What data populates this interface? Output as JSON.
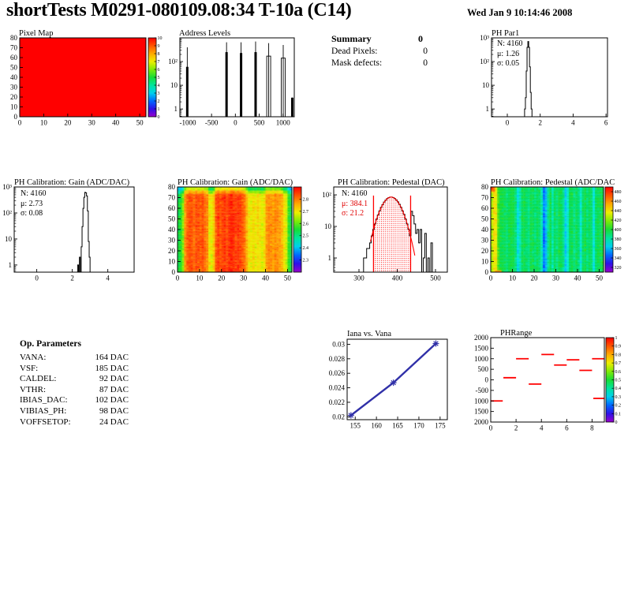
{
  "header": {
    "title": "shortTests M0291-080109.08:34 T-10a (C14)",
    "date": "Wed Jan  9 10:14:46 2008"
  },
  "summary": {
    "title": "Summary",
    "value": "0",
    "rows": [
      {
        "label": "Dead Pixels:",
        "value": "0"
      },
      {
        "label": "Mask defects:",
        "value": "0"
      }
    ]
  },
  "op_parameters": {
    "title": "Op. Parameters",
    "rows": [
      {
        "label": "VANA:",
        "value": "164 DAC"
      },
      {
        "label": "VSF:",
        "value": "185 DAC"
      },
      {
        "label": "CALDEL:",
        "value": "92 DAC"
      },
      {
        "label": "VTHR:",
        "value": "87 DAC"
      },
      {
        "label": "IBIAS_DAC:",
        "value": "102 DAC"
      },
      {
        "label": "VIBIAS_PH:",
        "value": "98 DAC"
      },
      {
        "label": "VOFFSETOP:",
        "value": "24 DAC"
      }
    ]
  },
  "colors": {
    "accent_red": "#ff0000",
    "line_blue": "#3030a8",
    "black": "#000000"
  },
  "chart_data": [
    {
      "el": "p-pixel-map",
      "type": "heatmap",
      "title": "Pixel Map",
      "panel": [
        0,
        32,
        215,
        130
      ],
      "frame": [
        25,
        16,
        160,
        100
      ],
      "title_pos": [
        24,
        5
      ],
      "xlim": [
        0,
        52.6
      ],
      "ylim": [
        0,
        80
      ],
      "xticks": [
        [
          0,
          "0"
        ],
        [
          10,
          "10"
        ],
        [
          20,
          "20"
        ],
        [
          30,
          "30"
        ],
        [
          40,
          "40"
        ],
        [
          50,
          "50"
        ]
      ],
      "yticks": [
        [
          0,
          "0"
        ],
        [
          10,
          "10"
        ],
        [
          20,
          "20"
        ],
        [
          30,
          "30"
        ],
        [
          40,
          "40"
        ],
        [
          50,
          "50"
        ],
        [
          60,
          "60"
        ],
        [
          70,
          "70"
        ],
        [
          80,
          "80"
        ]
      ],
      "nx": 52,
      "ny": 80,
      "uniform": 10,
      "zlim": [
        0,
        10
      ],
      "colorbar": {
        "x": 188,
        "w": 10,
        "zlim": [
          0,
          10
        ],
        "ticks": [
          [
            10,
            "10"
          ],
          [
            9,
            "9"
          ],
          [
            8,
            "8"
          ],
          [
            7,
            "7"
          ],
          [
            6,
            "6"
          ],
          [
            5,
            "5"
          ],
          [
            4,
            "4"
          ],
          [
            3,
            "3"
          ],
          [
            2,
            "2"
          ],
          [
            1,
            "1"
          ],
          [
            0,
            "0"
          ]
        ]
      }
    },
    {
      "el": "p-address",
      "type": "spikes",
      "title": "Address Levels",
      "panel": [
        200,
        32,
        200,
        130
      ],
      "frame": [
        28,
        16,
        145,
        100
      ],
      "title_pos": [
        27,
        5
      ],
      "xlim": [
        -1165,
        1237
      ],
      "yscale": "log",
      "ylim": [
        0.47,
        1000
      ],
      "xticks": [
        [
          -1000,
          "-1000"
        ],
        [
          -500,
          "-500"
        ],
        [
          0,
          "0"
        ],
        [
          500,
          "500"
        ],
        [
          1000,
          "1000"
        ]
      ],
      "yticks": [
        [
          1,
          "1"
        ],
        [
          10,
          "10"
        ],
        [
          100,
          "10²"
        ]
      ],
      "spikes": [
        {
          "x": -1010,
          "line": 400,
          "bar": 60
        },
        {
          "x": -185,
          "line": 650,
          "bar": 250
        },
        {
          "x": 120,
          "line": 650,
          "bar": 230
        },
        {
          "x": 425,
          "line": 700,
          "bar": 250
        },
        {
          "x": 700,
          "line": 600,
          "bar": 170,
          "hollow": true
        },
        {
          "x": 1005,
          "line": 500,
          "bar": 140,
          "hollow": true
        },
        {
          "x": 1195,
          "line": 3,
          "bar": 3
        }
      ]
    },
    {
      "el": "p-phpar1",
      "type": "histogram",
      "title": "PH Par1",
      "panel": [
        600,
        32,
        196,
        130
      ],
      "frame": [
        23,
        16,
        147,
        100
      ],
      "title_pos": [
        23,
        5
      ],
      "xlim": [
        -0.96,
        6.09
      ],
      "yscale": "log",
      "ylim": [
        0.47,
        1000
      ],
      "xticks": [
        [
          0,
          "0"
        ],
        [
          2,
          "2"
        ],
        [
          4,
          "4"
        ],
        [
          6,
          "6"
        ]
      ],
      "yticks": [
        [
          1,
          "1"
        ],
        [
          10,
          "10"
        ],
        [
          100,
          "10²"
        ],
        [
          1000,
          "10³"
        ]
      ],
      "bins": {
        "x0": 1.05,
        "bw": 0.05,
        "counts": [
          1,
          3,
          40,
          400,
          700,
          400,
          60,
          5,
          1
        ]
      },
      "stats": [
        "N: 4160",
        "μ: 1.26",
        "σ: 0.05"
      ],
      "stats_pos": [
        30,
        18
      ]
    },
    {
      "el": "p-gainhist",
      "type": "histogram",
      "title": "PH Calibration: Gain (ADC/DAC)",
      "panel": [
        0,
        220,
        215,
        135
      ],
      "frame": [
        18,
        17,
        152,
        108
      ],
      "title_pos": [
        18,
        6
      ],
      "xlim": [
        -1.27,
        5.48
      ],
      "yscale": "log",
      "ylim": [
        0.53,
        1000
      ],
      "xticks": [
        [
          0,
          "0"
        ],
        [
          2,
          "2"
        ],
        [
          4,
          "4"
        ]
      ],
      "yticks": [
        [
          1,
          "1"
        ],
        [
          10,
          "10"
        ],
        [
          100,
          "10²"
        ],
        [
          1000,
          "10³"
        ]
      ],
      "bins": {
        "x0": 2.3,
        "bw": 0.05,
        "counts": [
          1,
          0,
          2,
          0,
          5,
          30,
          150,
          400,
          620,
          600,
          450,
          120,
          8,
          2
        ]
      },
      "stats": [
        "N: 4160",
        "μ: 2.73",
        "σ: 0.08"
      ],
      "stats_pos": [
        26,
        20
      ]
    },
    {
      "el": "p-gainmap",
      "type": "heatmap",
      "title": "PH Calibration: Gain (ADC/DAC)",
      "panel": [
        200,
        220,
        200,
        135
      ],
      "frame": [
        25,
        17,
        145,
        108
      ],
      "title_pos": [
        25,
        6
      ],
      "xlim": [
        0,
        52
      ],
      "ylim": [
        0,
        80
      ],
      "xticks": [
        [
          0,
          "0"
        ],
        [
          10,
          "10"
        ],
        [
          20,
          "20"
        ],
        [
          30,
          "30"
        ],
        [
          40,
          "40"
        ],
        [
          50,
          "50"
        ]
      ],
      "yticks": [
        [
          0,
          "0"
        ],
        [
          10,
          "10"
        ],
        [
          20,
          "20"
        ],
        [
          30,
          "30"
        ],
        [
          40,
          "40"
        ],
        [
          50,
          "50"
        ],
        [
          60,
          "60"
        ],
        [
          70,
          "70"
        ],
        [
          80,
          "80"
        ]
      ],
      "nx": 52,
      "ny": 80,
      "zlim": [
        2.2,
        2.9
      ],
      "noise": 0.035,
      "seed": 42,
      "cols": [
        2.54,
        2.56,
        2.62,
        2.78,
        2.82,
        2.84,
        2.83,
        2.81,
        2.84,
        2.83,
        2.82,
        2.84,
        2.81,
        2.79,
        2.7,
        2.68,
        2.73,
        2.83,
        2.85,
        2.83,
        2.85,
        2.86,
        2.84,
        2.86,
        2.87,
        2.86,
        2.85,
        2.86,
        2.85,
        2.83,
        2.81,
        2.75,
        2.7,
        2.69,
        2.71,
        2.69,
        2.71,
        2.7,
        2.68,
        2.71,
        2.77,
        2.79,
        2.78,
        2.77,
        2.79,
        2.78,
        2.77,
        2.75,
        2.7,
        2.67,
        2.57,
        2.54
      ],
      "rowmod": [
        {
          "r0": 77,
          "r1": 79,
          "d": -0.16
        },
        {
          "r0": 74,
          "r1": 76,
          "d": -0.07
        }
      ],
      "colorbar": {
        "x": 172,
        "w": 10,
        "zlim": [
          2.2,
          2.9
        ],
        "ticks": [
          [
            2.8,
            "2.8"
          ],
          [
            2.7,
            "2.7"
          ],
          [
            2.6,
            "2.6"
          ],
          [
            2.5,
            "2.5"
          ],
          [
            2.4,
            "2.4"
          ],
          [
            2.3,
            "2.3"
          ]
        ]
      }
    },
    {
      "el": "p-pedhist",
      "type": "histogram",
      "title": "PH Calibration: Pedestal (DAC)",
      "panel": [
        415,
        220,
        200,
        135
      ],
      "frame": [
        8,
        17,
        144,
        108
      ],
      "title_pos": [
        13,
        6
      ],
      "xlim": [
        234,
        531
      ],
      "yscale": "log",
      "ylim": [
        0.355,
        178
      ],
      "xticks": [
        [
          300,
          "300"
        ],
        [
          400,
          "400"
        ],
        [
          500,
          "500"
        ]
      ],
      "yticks": [
        [
          1,
          "1"
        ],
        [
          10,
          "10"
        ],
        [
          100,
          "10²"
        ]
      ],
      "gen": {
        "from": 264,
        "to": 512,
        "bw": 4,
        "mu": 384.1,
        "sigma": 21.2,
        "peak": 85
      },
      "extras": {
        "312": 1,
        "320": 2,
        "328": 3,
        "436": 30,
        "440": 22,
        "444": 12,
        "448": 6,
        "452": 8,
        "456": 3,
        "460": 8,
        "468": 1,
        "472": 6,
        "480": 1,
        "488": 3
      },
      "fit": {
        "mu": 384.1,
        "sigma": 21.2,
        "peak": 85,
        "lines": [
          338,
          435
        ],
        "line_top": 95,
        "curve": [
          330,
          446
        ],
        "color": "#ff0000"
      },
      "stats": [
        "N: 4160",
        "μ: 384.1",
        "σ: 21.2"
      ],
      "stats_pos": [
        18,
        20
      ]
    },
    {
      "el": "p-pedmap",
      "type": "heatmap",
      "title": "PH Calibration: Pedestal (ADC/DAC",
      "panel": [
        612,
        220,
        184,
        135
      ],
      "frame": [
        10,
        17,
        143,
        108
      ],
      "title_pos": [
        10,
        6
      ],
      "xlim": [
        0,
        52
      ],
      "ylim": [
        0,
        80
      ],
      "xticks": [
        [
          0,
          "0"
        ],
        [
          10,
          "10"
        ],
        [
          20,
          "20"
        ],
        [
          30,
          "30"
        ],
        [
          40,
          "40"
        ],
        [
          50,
          "50"
        ]
      ],
      "yticks": [
        [
          0,
          "0"
        ],
        [
          10,
          "10"
        ],
        [
          20,
          "20"
        ],
        [
          30,
          "30"
        ],
        [
          40,
          "40"
        ],
        [
          50,
          "50"
        ],
        [
          60,
          "60"
        ],
        [
          70,
          "70"
        ],
        [
          80,
          "80"
        ]
      ],
      "nx": 52,
      "ny": 80,
      "zlim": [
        310,
        490
      ],
      "noise": 8,
      "seed": 1337,
      "cols": [
        425,
        440,
        438,
        408,
        398,
        396,
        394,
        390,
        396,
        398,
        396,
        388,
        368,
        378,
        394,
        396,
        392,
        386,
        396,
        394,
        388,
        394,
        390,
        378,
        348,
        358,
        385,
        396,
        380,
        394,
        388,
        396,
        394,
        386,
        362,
        375,
        394,
        396,
        386,
        394,
        390,
        372,
        392,
        396,
        388,
        394,
        390,
        370,
        392,
        396,
        394,
        398
      ],
      "spots": [
        {
          "c0": 0,
          "c1": 1,
          "r0": 76,
          "r1": 79,
          "v": 466
        },
        {
          "c0": 2,
          "c1": 4,
          "r0": 0,
          "r1": 1,
          "v": 458
        },
        {
          "c0": 0,
          "c1": 0,
          "r0": 78,
          "r1": 79,
          "v": 478
        }
      ],
      "colorbar": {
        "x": 155,
        "w": 10,
        "zlim": [
          310,
          490
        ],
        "ticks": [
          [
            480,
            "480"
          ],
          [
            460,
            "460"
          ],
          [
            440,
            "440"
          ],
          [
            420,
            "420"
          ],
          [
            400,
            "400"
          ],
          [
            380,
            "380"
          ],
          [
            360,
            "360"
          ],
          [
            340,
            "340"
          ],
          [
            320,
            "320"
          ]
        ]
      }
    },
    {
      "el": "p-iana",
      "type": "line",
      "title": "Iana vs. Vana",
      "panel": [
        415,
        410,
        170,
        135
      ],
      "frame": [
        25,
        20,
        127,
        102
      ],
      "title_pos": [
        25,
        8
      ],
      "xlim": [
        153.1,
        176.7
      ],
      "ylim": [
        0.0196,
        0.0307
      ],
      "xticks": [
        [
          155,
          "155"
        ],
        [
          160,
          "160"
        ],
        [
          165,
          "165"
        ],
        [
          170,
          "170"
        ],
        [
          175,
          "175"
        ]
      ],
      "yticks": [
        [
          0.02,
          "0.02"
        ],
        [
          0.022,
          "0.022"
        ],
        [
          0.024,
          "0.024"
        ],
        [
          0.026,
          "0.026"
        ],
        [
          0.028,
          "0.028"
        ],
        [
          0.03,
          "0.03"
        ]
      ],
      "points": [
        [
          154,
          0.0202
        ],
        [
          164,
          0.0247
        ],
        [
          174,
          0.0301
        ]
      ],
      "color": "#3030a8"
    },
    {
      "el": "p-phrange",
      "type": "segments",
      "title": "PHRange",
      "panel": [
        612,
        410,
        184,
        140
      ],
      "frame": [
        10,
        18,
        144,
        107
      ],
      "title_pos": [
        22,
        7
      ],
      "xlim": [
        0,
        8.97
      ],
      "ylim": [
        -2000,
        2000
      ],
      "xticks": [
        [
          0,
          "0"
        ],
        [
          2,
          "2"
        ],
        [
          4,
          "4"
        ],
        [
          6,
          "6"
        ],
        [
          8,
          "8"
        ]
      ],
      "yticks": [
        [
          2000,
          "2000"
        ],
        [
          1500,
          "1500"
        ],
        [
          1000,
          "1000"
        ],
        [
          500,
          "500"
        ],
        [
          0,
          "0"
        ],
        [
          -500,
          "-500"
        ],
        [
          -1000,
          "1000"
        ],
        [
          -1500,
          "1500"
        ],
        [
          -2000,
          "2000"
        ]
      ],
      "segments": [
        [
          0,
          0.95,
          -1000
        ],
        [
          1,
          2,
          100
        ],
        [
          2,
          3,
          1000
        ],
        [
          3,
          4,
          -200
        ],
        [
          4,
          5,
          1200
        ],
        [
          5,
          6,
          700
        ],
        [
          6,
          7,
          950
        ],
        [
          7,
          8,
          450
        ],
        [
          8,
          9,
          1000
        ],
        [
          8.1,
          9,
          -880
        ]
      ],
      "color": "#ff0000",
      "colorbar": {
        "x": 156,
        "w": 10,
        "zlim": [
          0,
          1
        ],
        "ticks": [
          [
            1,
            "1"
          ],
          [
            0.9,
            "0.9"
          ],
          [
            0.8,
            "0.8"
          ],
          [
            0.7,
            "0.7"
          ],
          [
            0.6,
            "0.6"
          ],
          [
            0.5,
            "0.5"
          ],
          [
            0.4,
            "0.4"
          ],
          [
            0.3,
            "0.3"
          ],
          [
            0.2,
            "0.2"
          ],
          [
            0.1,
            "0.1"
          ],
          [
            0,
            "0"
          ]
        ]
      }
    }
  ]
}
